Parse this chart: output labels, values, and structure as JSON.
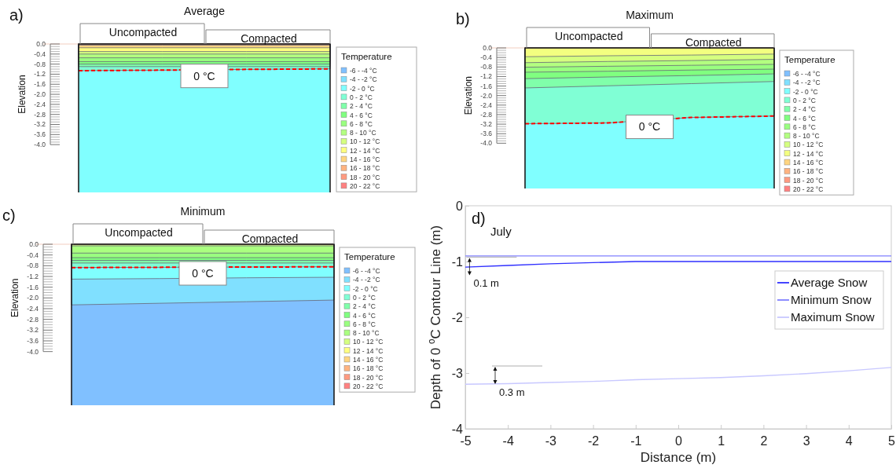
{
  "chart_data": [
    {
      "type": "area",
      "title": "Average",
      "ylabel": "Elevation",
      "legend_title": "Temperature",
      "legend": "right",
      "categories": [
        null,
        null,
        null,
        null
      ],
      "ylim": [
        -5.9,
        0
      ],
      "yticks": [
        {
          "value": 0,
          "label": "0.0"
        },
        -0.4,
        -0.8,
        -1.2,
        -1.6,
        {
          "value": -2,
          "label": "-2.0"
        },
        -2.4,
        -2.8,
        -3.2,
        -3.6,
        {
          "value": -4,
          "label": "-4.0"
        }
      ],
      "ref_lines": [
        {
          "axis": "y",
          "value": 0,
          "color": "#f2cdbf"
        }
      ],
      "annotations": [
        "a)",
        "Uncompacted",
        "Compacted",
        {
          "text": "0 °C",
          "y": -1.02
        }
      ],
      "bands": [
        {
          "axis": "y",
          "from": -5.9,
          "to": 0,
          "color": "#80ffff"
        }
      ],
      "series": [
        {
          "name": "20 - 22 °C",
          "color": "#ff8080",
          "values": [
            null,
            null,
            null,
            null
          ]
        },
        {
          "name": "18 - 20 °C",
          "color": "#ff9a80",
          "values": [
            null,
            null,
            null,
            null
          ]
        },
        {
          "name": "16 - 18 °C",
          "color": "#ffb380",
          "values": [
            -0.05,
            -0.05,
            -0.05,
            -0.05
          ]
        },
        {
          "name": "14 - 16 °C",
          "color": "#ffd580",
          "values": [
            -0.15,
            -0.15,
            -0.15,
            -0.15
          ]
        },
        {
          "name": "12 - 14 °C",
          "color": "#ffff80",
          "values": [
            -0.3,
            -0.3,
            -0.3,
            -0.3
          ]
        },
        {
          "name": "10 - 12 °C",
          "color": "#d5ff80",
          "values": [
            -0.4,
            -0.4,
            -0.4,
            -0.4
          ]
        },
        {
          "name": "8 - 10 °C",
          "color": "#b3ff80",
          "values": [
            -0.55,
            -0.55,
            -0.55,
            -0.55
          ]
        },
        {
          "name": "6 - 8 °C",
          "color": "#9aff80",
          "values": [
            -0.7,
            -0.7,
            -0.7,
            -0.7
          ]
        },
        {
          "name": "4 - 6 °C",
          "color": "#80ff80",
          "values": [
            -0.8,
            -0.8,
            -0.8,
            -0.8
          ]
        },
        {
          "name": "2 - 4 °C",
          "color": "#80ffaa",
          "values": [
            -0.9,
            -0.9,
            -0.9,
            -0.9
          ]
        },
        {
          "name": "0 - 2 °C",
          "color": "#80ffd5",
          "values": [
            -1.06,
            -1.04,
            -1.01,
            -0.99
          ]
        },
        {
          "name": "-2 - 0 °C",
          "color": "#80ffff",
          "values": [
            null,
            null,
            null,
            null
          ]
        },
        {
          "name": "-4 - -2 °C",
          "color": "#80e0ff",
          "values": [
            null,
            null,
            null,
            null
          ]
        },
        {
          "name": "-6 - -4 °C",
          "color": "#80c0ff",
          "values": [
            null,
            null,
            null,
            null
          ]
        },
        {
          "type": "line",
          "color": "#ff0000",
          "line_style": "dashed",
          "values": [
            -1.06,
            -1.04,
            -1.01,
            -0.99
          ]
        }
      ]
    },
    {
      "type": "area",
      "title": "Maximum",
      "ylabel": "Elevation",
      "legend_title": "Temperature",
      "legend": "right",
      "categories": [
        null,
        null,
        null,
        null
      ],
      "ylim": [
        -5.9,
        0
      ],
      "yticks": [
        {
          "value": 0,
          "label": "0.0"
        },
        -0.4,
        -0.8,
        -1.2,
        -1.6,
        {
          "value": -2,
          "label": "-2.0"
        },
        -2.4,
        -2.8,
        -3.2,
        -3.6,
        {
          "value": -4,
          "label": "-4.0"
        }
      ],
      "ref_lines": [
        {
          "axis": "y",
          "value": 0,
          "color": "#f2cdbf"
        }
      ],
      "annotations": [
        "b)",
        "Uncompacted",
        "Compacted",
        {
          "text": "0 °C",
          "y": -3.05
        }
      ],
      "bands": [
        {
          "axis": "y",
          "from": -5.9,
          "to": 0,
          "color": "#80ffff"
        }
      ],
      "series": [
        {
          "name": "20 - 22 °C",
          "color": "#ff8080",
          "values": [
            null,
            null,
            null,
            null
          ]
        },
        {
          "name": "18 - 20 °C",
          "color": "#ff9a80",
          "values": [
            null,
            null,
            null,
            null
          ]
        },
        {
          "name": "16 - 18 °C",
          "color": "#ffb380",
          "values": [
            null,
            null,
            null,
            null
          ]
        },
        {
          "name": "14 - 16 °C",
          "color": "#ffd580",
          "values": [
            null,
            null,
            null,
            null
          ]
        },
        {
          "name": "12 - 14 °C",
          "color": "#f3ff80",
          "values": [
            -0.37,
            -0.33,
            -0.3,
            -0.26
          ]
        },
        {
          "name": "10 - 12 °C",
          "color": "#d5ff80",
          "values": [
            -0.62,
            -0.57,
            -0.53,
            -0.48
          ]
        },
        {
          "name": "8 - 10 °C",
          "color": "#b3ff80",
          "values": [
            -0.81,
            -0.77,
            -0.73,
            -0.69
          ]
        },
        {
          "name": "6 - 8 °C",
          "color": "#9aff80",
          "values": [
            -1.02,
            -0.98,
            -0.93,
            -0.89
          ]
        },
        {
          "name": "4 - 6 °C",
          "color": "#80ff80",
          "values": [
            -1.29,
            -1.22,
            -1.16,
            -1.09
          ]
        },
        {
          "name": "2 - 4 °C",
          "color": "#80ffaa",
          "values": [
            -1.68,
            -1.59,
            -1.5,
            -1.41
          ]
        },
        {
          "name": "0 - 2 °C",
          "color": "#80ffd5",
          "values": [
            -3.18,
            -3.15,
            -2.92,
            -2.86
          ]
        },
        {
          "name": "-2 - 0 °C",
          "color": "#80ffff",
          "values": [
            null,
            null,
            null,
            null
          ]
        },
        {
          "name": "-4 - -2 °C",
          "color": "#80e0ff",
          "values": [
            null,
            null,
            null,
            null
          ]
        },
        {
          "name": "-6 - -4 °C",
          "color": "#80c0ff",
          "values": [
            null,
            null,
            null,
            null
          ]
        },
        {
          "type": "line",
          "color": "#ff0000",
          "line_style": "dashed",
          "values": [
            -3.18,
            -3.15,
            -2.92,
            -2.86
          ]
        }
      ]
    },
    {
      "type": "area",
      "title": "Minimum",
      "ylabel": "Elevation",
      "legend_title": "Temperature",
      "legend": "right",
      "categories": [
        null,
        null,
        null,
        null
      ],
      "ylim": [
        -6.0,
        0
      ],
      "yticks": [
        {
          "value": 0,
          "label": "0.0"
        },
        -0.4,
        -0.8,
        -1.2,
        -1.6,
        {
          "value": -2,
          "label": "-2.0"
        },
        -2.4,
        -2.8,
        -3.2,
        -3.6,
        {
          "value": -4,
          "label": "-4.0"
        }
      ],
      "ref_lines": [
        {
          "axis": "y",
          "value": 0,
          "color": "#f2cdbf"
        }
      ],
      "annotations": [
        "c)",
        "Uncompacted",
        "Compacted",
        {
          "text": "0 °C",
          "y": -0.85
        }
      ],
      "bands": [
        {
          "axis": "y",
          "from": -6.0,
          "to": 0,
          "color": "#80c0ff"
        }
      ],
      "series": [
        {
          "name": "20 - 22 °C",
          "color": "#ff8080",
          "values": [
            null,
            null,
            null,
            null
          ]
        },
        {
          "name": "18 - 20 °C",
          "color": "#ff9a80",
          "values": [
            null,
            null,
            null,
            null
          ]
        },
        {
          "name": "16 - 18 °C",
          "color": "#ffb380",
          "values": [
            null,
            null,
            null,
            null
          ]
        },
        {
          "name": "14 - 16 °C",
          "color": "#ffd580",
          "values": [
            null,
            null,
            null,
            null
          ]
        },
        {
          "name": "12 - 14 °C",
          "color": "#ffff80",
          "values": [
            null,
            null,
            null,
            null
          ]
        },
        {
          "name": "10 - 12 °C",
          "color": "#d5ff80",
          "values": [
            -0.06,
            -0.06,
            -0.06,
            -0.06
          ]
        },
        {
          "name": "8 - 10 °C",
          "color": "#aaff80",
          "values": [
            -0.33,
            -0.33,
            -0.33,
            -0.33
          ]
        },
        {
          "name": "6 - 8 °C",
          "color": "#9aff80",
          "values": [
            -0.5,
            -0.5,
            -0.5,
            -0.5
          ]
        },
        {
          "name": "4 - 6 °C",
          "color": "#80ff80",
          "values": [
            -0.6,
            -0.6,
            -0.6,
            -0.6
          ]
        },
        {
          "name": "2 - 4 °C",
          "color": "#80ffaa",
          "values": [
            -0.7,
            -0.7,
            -0.7,
            -0.7
          ]
        },
        {
          "name": "0 - 2 °C",
          "color": "#80ffd5",
          "values": [
            -0.87,
            -0.86,
            -0.85,
            -0.84
          ]
        },
        {
          "name": "-2 - 0 °C",
          "color": "#80ffff",
          "values": [
            -1.3,
            -1.28,
            -1.25,
            -1.23
          ]
        },
        {
          "name": "-4 - -2 °C",
          "color": "#80e0ff",
          "values": [
            -2.26,
            -2.2,
            -2.14,
            -2.08
          ]
        },
        {
          "name": "-6 - -4 °C",
          "color": "#80c0ff",
          "values": [
            null,
            null,
            null,
            null
          ]
        },
        {
          "type": "line",
          "color": "#ff0000",
          "line_style": "dashed",
          "values": [
            -0.87,
            -0.86,
            -0.85,
            -0.84
          ]
        }
      ]
    },
    {
      "type": "line",
      "xlabel": "Distance (m)",
      "ylabel": "Depth of 0 $^{o}$C Contour Line (m)",
      "legend": "top right",
      "xlim": [
        -5,
        5
      ],
      "xticks": [
        -5,
        -4,
        -3,
        -2,
        -1,
        0,
        1,
        2,
        3,
        4,
        5
      ],
      "ylim": [
        -4,
        0
      ],
      "yticks": [
        -4,
        -3,
        -2,
        -1,
        0
      ],
      "annotations": [
        "d)",
        "July",
        {
          "text": "0.1 m",
          "x": -4.9,
          "y": -1.09
        },
        "0.3 m"
      ],
      "series": [
        {
          "name": "Average Snow",
          "color": "#3030ff",
          "x": [
            -5,
            -4,
            -3,
            -2,
            -1,
            0,
            1,
            2,
            3,
            4,
            5
          ],
          "values": [
            -1.1,
            -1.07,
            -1.04,
            -1.02,
            -1.0,
            -1.0,
            -1.0,
            -1.0,
            -1.0,
            -1.0,
            -1.0
          ]
        },
        {
          "name": "Minimum Snow",
          "color": "#8080ff",
          "x": [
            -5,
            5
          ],
          "values": [
            -0.9,
            -0.9
          ]
        },
        {
          "name": "Maximum Snow",
          "color": "#c8c8ff",
          "x": [
            -5,
            -4,
            -3,
            -2,
            -1,
            0,
            1,
            2,
            3,
            4,
            5
          ],
          "values": [
            -3.2,
            -3.19,
            -3.17,
            -3.15,
            -3.12,
            -3.1,
            -3.08,
            -3.05,
            -3.01,
            -2.96,
            -2.9
          ]
        }
      ]
    }
  ]
}
